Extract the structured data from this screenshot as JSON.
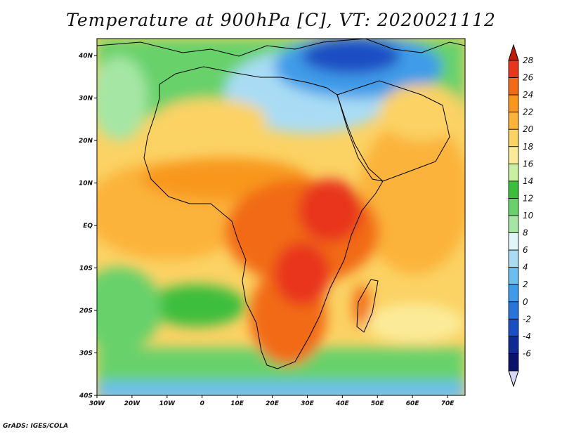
{
  "title": "Temperature at 900hPa [C], VT: 2020021112",
  "credit": "GrADS: IGES/COLA",
  "map": {
    "lon_range": [
      -30,
      75
    ],
    "lat_range": [
      -40,
      44
    ],
    "lon_ticks": [
      {
        "value": -30,
        "label": "30W"
      },
      {
        "value": -20,
        "label": "20W"
      },
      {
        "value": -10,
        "label": "10W"
      },
      {
        "value": 0,
        "label": "0"
      },
      {
        "value": 10,
        "label": "10E"
      },
      {
        "value": 20,
        "label": "20E"
      },
      {
        "value": 30,
        "label": "30E"
      },
      {
        "value": 40,
        "label": "40E"
      },
      {
        "value": 50,
        "label": "50E"
      },
      {
        "value": 60,
        "label": "60E"
      },
      {
        "value": 70,
        "label": "70E"
      }
    ],
    "lat_ticks": [
      {
        "value": 40,
        "label": "40N"
      },
      {
        "value": 30,
        "label": "30N"
      },
      {
        "value": 20,
        "label": "20N"
      },
      {
        "value": 10,
        "label": "10N"
      },
      {
        "value": 0,
        "label": "EQ"
      },
      {
        "value": -10,
        "label": "10S"
      },
      {
        "value": -20,
        "label": "20S"
      },
      {
        "value": -30,
        "label": "30S"
      },
      {
        "value": -40,
        "label": "40S"
      }
    ]
  },
  "colorbar": {
    "levels": [
      "28",
      "26",
      "24",
      "22",
      "20",
      "18",
      "16",
      "14",
      "12",
      "10",
      "8",
      "6",
      "4",
      "2",
      "0",
      "-2",
      "-4",
      "-6"
    ],
    "colors": [
      "#e8361b",
      "#f26a17",
      "#f8971d",
      "#fbb33b",
      "#fbd264",
      "#fbeb99",
      "#c9f0a0",
      "#3cbe3c",
      "#68d16b",
      "#a5e6a5",
      "#dff5f7",
      "#a9dcf4",
      "#6cbdf0",
      "#3f9be8",
      "#2a73d8",
      "#1b4ec2",
      "#0f2a96",
      "#0a1269"
    ],
    "top_arrow_color": "#c01b0a",
    "bottom_arrow_color": "#d6d8f6"
  }
}
